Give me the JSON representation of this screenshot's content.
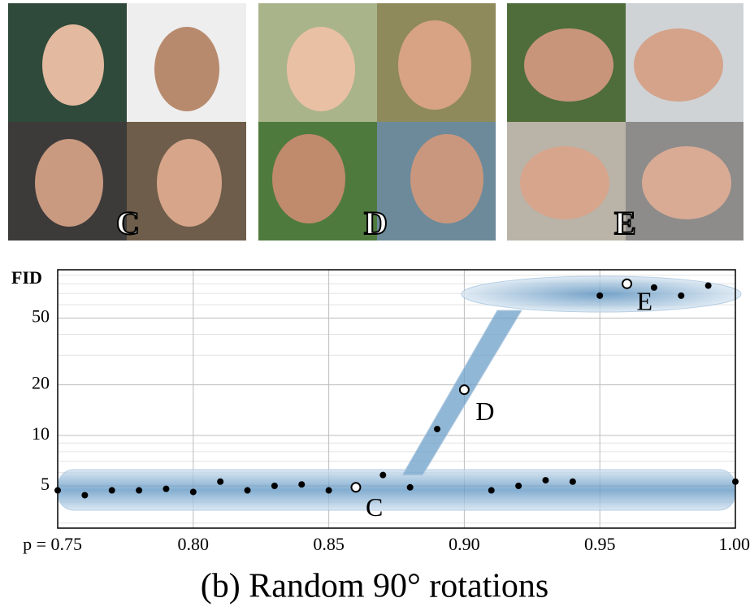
{
  "images": [
    {
      "label": "C"
    },
    {
      "label": "D"
    },
    {
      "label": "E"
    }
  ],
  "chart_data": {
    "type": "scatter",
    "y_label": "FID",
    "caption": "(b) Random 90° rotations",
    "log_y": true,
    "grid": true,
    "xlim": [
      0.75,
      1.0
    ],
    "xticks": [
      {
        "value": 0.75,
        "label": "p = 0.75"
      },
      {
        "value": 0.8,
        "label": "0.80"
      },
      0.85,
      {
        "value": 0.9,
        "label": "0.90"
      },
      0.95,
      {
        "value": 1.0,
        "label": "1.00"
      }
    ],
    "ylim": [
      2.8,
      97
    ],
    "yticks": [
      5,
      10,
      20,
      50
    ],
    "yminor": [
      3,
      4,
      6,
      7,
      8,
      9,
      30,
      40,
      60,
      70,
      80,
      90
    ],
    "series": [
      {
        "color": "#000000",
        "x": [
          0.75,
          0.76,
          0.77,
          0.78,
          0.79,
          0.8,
          0.81,
          0.82,
          0.83,
          0.84,
          0.85,
          0.87,
          0.88,
          0.89,
          0.91,
          0.92,
          0.93,
          0.94,
          0.95,
          0.97,
          0.98,
          0.99,
          1.0
        ],
        "values": [
          4.7,
          4.4,
          4.7,
          4.7,
          4.8,
          4.6,
          5.3,
          4.7,
          5.0,
          5.1,
          4.7,
          5.8,
          4.9,
          10.9,
          4.7,
          5.0,
          5.4,
          5.3,
          68,
          76,
          68,
          78,
          5.3
        ]
      },
      {
        "color": "#ffffff",
        "x": [
          0.86,
          0.9,
          0.96
        ],
        "values": [
          4.9,
          18.7,
          80
        ],
        "labels": [
          "C",
          "D",
          "E"
        ]
      }
    ]
  }
}
